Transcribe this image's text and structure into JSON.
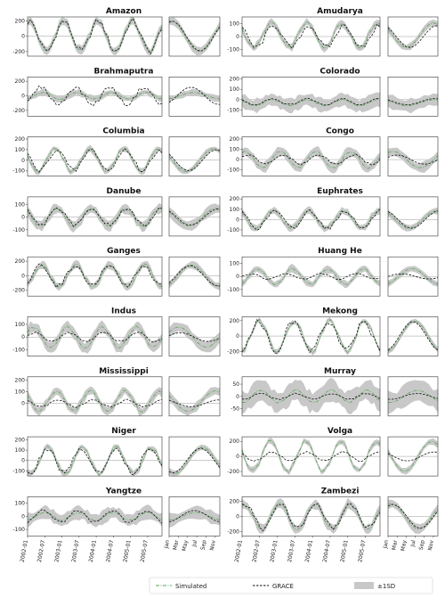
{
  "chart_data": {
    "type": "line",
    "title": "",
    "xlabel": "",
    "ylabel": "",
    "legend": {
      "placement": "bottom-right",
      "entries": [
        "Simulated",
        "GRACE",
        "±1SD"
      ]
    },
    "series_style": {
      "simulated": {
        "color": "#5aa55a",
        "dash": "dashdot"
      },
      "grace": {
        "color": "#111111",
        "dash": "dashed"
      },
      "sd_band": {
        "color": "#c8c8c8"
      }
    },
    "time_axis": {
      "tick_labels": [
        "2002-01",
        "2002-07",
        "2003-01",
        "2003-07",
        "2004-01",
        "2004-07",
        "2005-01",
        "2005-07"
      ],
      "range": [
        "2002-01",
        "2005-12"
      ]
    },
    "month_axis": {
      "tick_labels": [
        "Jan",
        "Mar",
        "May",
        "Jul",
        "Sep",
        "Nov"
      ]
    },
    "panels": [
      {
        "basin": "Amazon",
        "yticks": [
          -200,
          0,
          200
        ],
        "ylim": [
          -260,
          250
        ],
        "amp": 200,
        "grace_amp": 195,
        "sd": 50,
        "phase": 1.3,
        "grace_phase": 1.2,
        "offset": 0,
        "grace_offset": 0
      },
      {
        "basin": "Amudarya",
        "yticks": [
          -100,
          0,
          100
        ],
        "ylim": [
          -150,
          150
        ],
        "amp": 95,
        "grace_amp": 85,
        "sd": 25,
        "phase": 2.6,
        "grace_phase": 2.2,
        "offset": 10,
        "grace_offset": 0
      },
      {
        "basin": "Brahmaputra",
        "yticks": [
          -200,
          0,
          200
        ],
        "ylim": [
          -280,
          260
        ],
        "amp": 45,
        "grace_amp": 120,
        "sd": 40,
        "phase": -1.2,
        "grace_phase": -0.9,
        "offset": 0,
        "grace_offset": 0
      },
      {
        "basin": "Colorado",
        "yticks": [
          -100,
          0,
          100,
          200
        ],
        "ylim": [
          -160,
          220
        ],
        "amp": 30,
        "grace_amp": 30,
        "sd": 60,
        "phase": 2.5,
        "grace_phase": 2.5,
        "offset": -30,
        "grace_offset": -20
      },
      {
        "basin": "Columbia",
        "yticks": [
          -100,
          0,
          100,
          200
        ],
        "ylim": [
          -150,
          220
        ],
        "amp": 110,
        "grace_amp": 100,
        "sd": 25,
        "phase": 2.8,
        "grace_phase": 2.5,
        "offset": 0,
        "grace_offset": 0
      },
      {
        "basin": "Congo",
        "yticks": [
          -100,
          0,
          100,
          200
        ],
        "ylim": [
          -160,
          220
        ],
        "amp": 80,
        "grace_amp": 45,
        "sd": 45,
        "phase": 1.0,
        "grace_phase": 0.5,
        "offset": 0,
        "grace_offset": 0
      },
      {
        "basin": "Danube",
        "yticks": [
          -100,
          0,
          100
        ],
        "ylim": [
          -150,
          160
        ],
        "amp": 70,
        "grace_amp": 65,
        "sd": 35,
        "phase": 2.5,
        "grace_phase": 2.3,
        "offset": 0,
        "grace_offset": 0
      },
      {
        "basin": "Euphrates",
        "yticks": [
          -100,
          0,
          100,
          200
        ],
        "ylim": [
          -160,
          220
        ],
        "amp": 85,
        "grace_amp": 85,
        "sd": 30,
        "phase": 2.3,
        "grace_phase": 2.0,
        "offset": 0,
        "grace_offset": 0
      },
      {
        "basin": "Ganges",
        "yticks": [
          -200,
          0,
          200
        ],
        "ylim": [
          -280,
          260
        ],
        "amp": 150,
        "grace_amp": 140,
        "sd": 45,
        "phase": -1.0,
        "grace_phase": -0.8,
        "offset": 0,
        "grace_offset": 0
      },
      {
        "basin": "Huang He",
        "yticks": [
          -100,
          0,
          100
        ],
        "ylim": [
          -150,
          150
        ],
        "amp": 60,
        "grace_amp": 20,
        "sd": 25,
        "phase": -1.2,
        "grace_phase": 0,
        "offset": 0,
        "grace_offset": 0
      },
      {
        "basin": "Indus",
        "yticks": [
          -100,
          0,
          100
        ],
        "ylim": [
          -150,
          160
        ],
        "amp": 80,
        "grace_amp": 35,
        "sd": 40,
        "phase": 0.5,
        "grace_phase": 0.3,
        "offset": 0,
        "grace_offset": 0
      },
      {
        "basin": "Mekong",
        "yticks": [
          -200,
          0,
          200
        ],
        "ylim": [
          -260,
          250
        ],
        "amp": 200,
        "grace_amp": 190,
        "sd": 30,
        "phase": -1.5,
        "grace_phase": -1.3,
        "offset": 0,
        "grace_offset": 0
      },
      {
        "basin": "Mississippi",
        "yticks": [
          0,
          100,
          200
        ],
        "ylim": [
          -110,
          230
        ],
        "amp": 90,
        "grace_amp": 30,
        "sd": 35,
        "phase": 2.6,
        "grace_phase": 2.2,
        "offset": 20,
        "grace_offset": 0
      },
      {
        "basin": "Murray",
        "yticks": [
          -50,
          0,
          50
        ],
        "ylim": [
          -80,
          80
        ],
        "amp": 25,
        "grace_amp": 12,
        "sd": 40,
        "phase": -1.8,
        "grace_phase": -1.8,
        "offset": 0,
        "grace_offset": 0
      },
      {
        "basin": "Niger",
        "yticks": [
          -100,
          0,
          100,
          200
        ],
        "ylim": [
          -150,
          230
        ],
        "amp": 130,
        "grace_amp": 120,
        "sd": 25,
        "phase": -2.2,
        "grace_phase": -2.0,
        "offset": 0,
        "grace_offset": 0
      },
      {
        "basin": "Volga",
        "yticks": [
          -200,
          0,
          200
        ],
        "ylim": [
          -260,
          260
        ],
        "amp": 200,
        "grace_amp": 60,
        "sd": 35,
        "phase": 2.8,
        "grace_phase": 2.5,
        "offset": 0,
        "grace_offset": 0
      },
      {
        "basin": "Yangtze",
        "yticks": [
          -100,
          0,
          100
        ],
        "ylim": [
          -150,
          150
        ],
        "amp": 30,
        "grace_amp": 45,
        "sd": 45,
        "phase": -1.5,
        "grace_phase": -1.3,
        "offset": 0,
        "grace_offset": 0
      },
      {
        "basin": "Zambezi",
        "yticks": [
          -200,
          0,
          200
        ],
        "ylim": [
          -260,
          260
        ],
        "amp": 170,
        "grace_amp": 160,
        "sd": 55,
        "phase": 1.2,
        "grace_phase": 1.0,
        "offset": 0,
        "grace_offset": 0
      }
    ]
  }
}
